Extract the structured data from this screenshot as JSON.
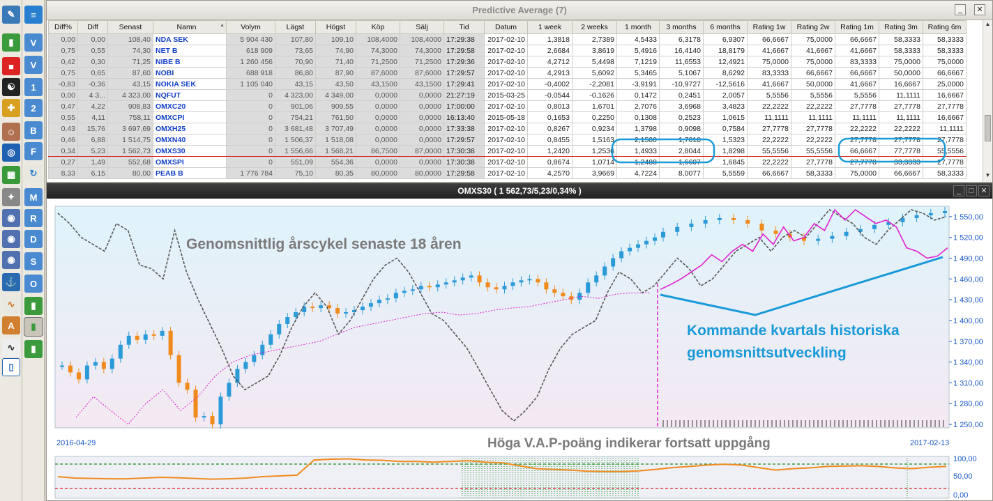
{
  "top_window": {
    "title": "Predictive Average (7)",
    "minimize_label": "_",
    "close_label": "✕",
    "columns": [
      "Diff%",
      "Diff",
      "Senast",
      "Namn",
      "Volym",
      "Lägst",
      "Högst",
      "Köp",
      "Sälj",
      "Tid",
      "Datum",
      "1 week",
      "2 weeks",
      "1 month",
      "3 months",
      "6 months",
      "Rating 1w",
      "Rating 2w",
      "Rating 1m",
      "Rating 3m",
      "Rating 6m"
    ],
    "sort_marker": "▲",
    "selected_row": 10,
    "rows": [
      [
        "0,00",
        "0,00",
        "108,40",
        "NDA SEK",
        "5 904 430",
        "107,80",
        "109,10",
        "108,4000",
        "108,4000",
        "17:29:38",
        "2017-02-10",
        "1,3818",
        "2,7389",
        "4,5433",
        "6,3178",
        "6,9307",
        "66,6667",
        "75,0000",
        "66,6667",
        "58,3333",
        "58,3333"
      ],
      [
        "0,75",
        "0,55",
        "74,30",
        "NET B",
        "618 909",
        "73,65",
        "74,90",
        "74,3000",
        "74,3000",
        "17:29:58",
        "2017-02-10",
        "2,6684",
        "3,8619",
        "5,4916",
        "16,4140",
        "18,8179",
        "41,6667",
        "41,6667",
        "41,6667",
        "58,3333",
        "58,3333"
      ],
      [
        "0,42",
        "0,30",
        "71,25",
        "NIBE B",
        "1 260 456",
        "70,90",
        "71,40",
        "71,2500",
        "71,2500",
        "17:29:36",
        "2017-02-10",
        "4,2712",
        "5,4498",
        "7,1219",
        "11,6553",
        "12,4921",
        "75,0000",
        "75,0000",
        "83,3333",
        "75,0000",
        "75,0000"
      ],
      [
        "0,75",
        "0,65",
        "87,60",
        "NOBI",
        "688 918",
        "86,80",
        "87,90",
        "87,6000",
        "87,6000",
        "17:29:57",
        "2017-02-10",
        "4,2913",
        "5,6092",
        "5,3465",
        "5,1067",
        "8,6292",
        "83,3333",
        "66,6667",
        "66,6667",
        "50,0000",
        "66,6667"
      ],
      [
        "-0,83",
        "-0,36",
        "43,15",
        "NOKIA SEK",
        "1 105 040",
        "43,15",
        "43,50",
        "43,1500",
        "43,1500",
        "17:29:41",
        "2017-02-10",
        "-0,4002",
        "-2,2081",
        "-3,9191",
        "-10,9727",
        "-12,5616",
        "41,6667",
        "50,0000",
        "41,6667",
        "16,6667",
        "25,0000"
      ],
      [
        "0,00",
        "4 3...",
        "4 323,00",
        "NQFUT",
        "0",
        "4 323,00",
        "4 349,00",
        "0,0000",
        "0,0000",
        "21:27:19",
        "2015-03-25",
        "-0,0544",
        "-0,1626",
        "0,1472",
        "0,2451",
        "2,0057",
        "5,5556",
        "5,5556",
        "5,5556",
        "11,1111",
        "16,6667"
      ],
      [
        "0,47",
        "4,22",
        "908,83",
        "OMXC20",
        "0",
        "901,06",
        "909,55",
        "0,0000",
        "0,0000",
        "17:00:00",
        "2017-02-10",
        "0,8013",
        "1,6701",
        "2,7076",
        "3,6968",
        "3,4823",
        "22,2222",
        "22,2222",
        "27,7778",
        "27,7778",
        "27,7778"
      ],
      [
        "0,55",
        "4,11",
        "758,11",
        "OMXCPI",
        "0",
        "754,21",
        "761,50",
        "0,0000",
        "0,0000",
        "16:13:40",
        "2015-05-18",
        "0,1653",
        "0,2250",
        "0,1308",
        "0,2523",
        "1,0615",
        "11,1111",
        "11,1111",
        "11,1111",
        "11,1111",
        "16,6667"
      ],
      [
        "0,43",
        "15,76",
        "3 697,69",
        "OMXH25",
        "0",
        "3 681,48",
        "3 707,49",
        "0,0000",
        "0,0000",
        "17:33:38",
        "2017-02-10",
        "0,8267",
        "0,9234",
        "1,3798",
        "0,9098",
        "0,7584",
        "27,7778",
        "27,7778",
        "22,2222",
        "22,2222",
        "11,1111"
      ],
      [
        "0,46",
        "6,88",
        "1 514,75",
        "OMXN40",
        "0",
        "1 506,37",
        "1 518,08",
        "0,0000",
        "0,0000",
        "17:29:57",
        "2017-02-10",
        "0,8455",
        "1,5163",
        "2,1500",
        "1,7018",
        "1,5323",
        "22,2222",
        "22,2222",
        "27,7778",
        "27,7778",
        "27,7778"
      ],
      [
        "0,34",
        "5,23",
        "1 562,73",
        "OMXS30",
        "0",
        "1 556,66",
        "1 568,21",
        "86,7500",
        "87,0000",
        "17:30:38",
        "2017-02-10",
        "1,2420",
        "1,2536",
        "1,4933",
        "2,8044",
        "1,8298",
        "55,5556",
        "55,5556",
        "66,6667",
        "77,7778",
        "55,5556"
      ],
      [
        "0,27",
        "1,49",
        "552,68",
        "OMXSPI",
        "0",
        "551,09",
        "554,36",
        "0,0000",
        "0,0000",
        "17:30:38",
        "2017-02-10",
        "0,8674",
        "1,0714",
        "1,2488",
        "1,6607",
        "1,6845",
        "22,2222",
        "27,7778",
        "27,7778",
        "33,3333",
        "27,7778"
      ],
      [
        "8,33",
        "6,15",
        "80,00",
        "PEAB B",
        "1 776 784",
        "75,10",
        "80,35",
        "80,0000",
        "80,0000",
        "17:29:58",
        "2017-02-10",
        "4,2570",
        "3,9669",
        "4,7224",
        "8,0077",
        "5,5559",
        "66,6667",
        "58,3333",
        "75,0000",
        "66,6667",
        "58,3333"
      ]
    ]
  },
  "chart_window": {
    "title": "OMXS30 ( 1 562,73/5,23/0,34% )",
    "annotation_1": "Genomsnittlig årscykel senaste 18 åren",
    "annotation_2_line1": "Kommande kvartals historiska",
    "annotation_2_line2": "genomsnittsutveckling",
    "annotation_3": "Höga V.A.P-poäng indikerar fortsatt uppgång",
    "date_start": "2016-04-29",
    "date_end": "2017-02-13",
    "price_ticks": [
      "1 550,00",
      "1 520,00",
      "1 490,00",
      "1 460,00",
      "1 430,00",
      "1 400,00",
      "1 370,00",
      "1 340,00",
      "1 310,00",
      "1 280,00",
      "1 250,00"
    ],
    "osc_ticks": [
      "100,00",
      "50,00",
      "0,00"
    ],
    "colors": {
      "up": "#2a9ad8",
      "down": "#f08a1c",
      "avg_cycle": "#555555",
      "projection": "#e020d0",
      "annotation_blue": "#189ad8",
      "oscillator": "#f08a1c",
      "upper_band": "#1a8a1a",
      "lower_band": "#d82020"
    }
  },
  "chart_data": {
    "type": "candlestick",
    "symbol": "OMXS30",
    "x_range": [
      "2016-04-29",
      "2017-02-13"
    ],
    "ylim": [
      1245,
      1565
    ],
    "close_path": [
      1335,
      1325,
      1315,
      1335,
      1340,
      1330,
      1345,
      1365,
      1378,
      1372,
      1380,
      1378,
      1385,
      1350,
      1310,
      1300,
      1260,
      1262,
      1250,
      1290,
      1310,
      1330,
      1340,
      1350,
      1365,
      1380,
      1395,
      1405,
      1412,
      1420,
      1418,
      1422,
      1418,
      1410,
      1412,
      1415,
      1420,
      1425,
      1430,
      1432,
      1440,
      1443,
      1445,
      1450,
      1448,
      1452,
      1455,
      1458,
      1462,
      1465,
      1455,
      1448,
      1445,
      1450,
      1455,
      1458,
      1460,
      1455,
      1445,
      1440,
      1435,
      1430,
      1440,
      1455,
      1465,
      1478,
      1490,
      1500,
      1505,
      1510,
      1515,
      1520,
      1528,
      1535,
      1540,
      1545,
      1548,
      1545,
      1540,
      1530,
      1525,
      1520,
      1515,
      1518,
      1522,
      1528,
      1532,
      1538,
      1542,
      1548,
      1552,
      1555,
      1558
    ],
    "avg_cycle_path": [
      1555,
      1540,
      1520,
      1510,
      1500,
      1540,
      1530,
      1480,
      1475,
      1460,
      1530,
      1470,
      1430,
      1395,
      1360,
      1320,
      1300,
      1310,
      1320,
      1350,
      1390,
      1420,
      1440,
      1420,
      1380,
      1400,
      1430,
      1460,
      1480,
      1490,
      1470,
      1440,
      1410,
      1400,
      1380,
      1360,
      1330,
      1300,
      1270,
      1255,
      1270,
      1290,
      1330,
      1360,
      1380,
      1390,
      1400,
      1440,
      1470,
      1460,
      1440,
      1450,
      1470,
      1490,
      1475,
      1450,
      1460,
      1480,
      1500,
      1510,
      1520,
      1500,
      1520,
      1530,
      1520,
      1540,
      1560,
      1550,
      1540,
      1520,
      1510,
      1530,
      1545,
      1560,
      1555,
      1545,
      1550
    ],
    "projection_path": [
      1445,
      1452,
      1460,
      1470,
      1480,
      1495,
      1485,
      1500,
      1510,
      1500,
      1525,
      1510,
      1535,
      1515,
      1520,
      1540,
      1530,
      1560,
      1545,
      1560,
      1550,
      1540,
      1545,
      1535,
      1505,
      1500,
      1490,
      1493,
      1505
    ],
    "vap_levels": [
      50,
      46,
      45,
      44,
      44,
      46,
      48,
      47,
      45,
      43,
      44,
      46,
      50,
      52,
      54,
      96,
      98,
      99,
      96,
      95,
      92,
      92,
      90,
      92,
      94,
      90,
      88,
      80,
      72,
      70,
      68,
      65,
      64,
      64,
      66,
      70,
      75,
      78,
      82,
      84,
      82,
      75,
      68,
      72,
      74,
      78,
      79,
      80,
      78,
      74,
      72,
      76,
      78
    ],
    "vap_upper_band": 80,
    "vap_lower_band": 20
  }
}
